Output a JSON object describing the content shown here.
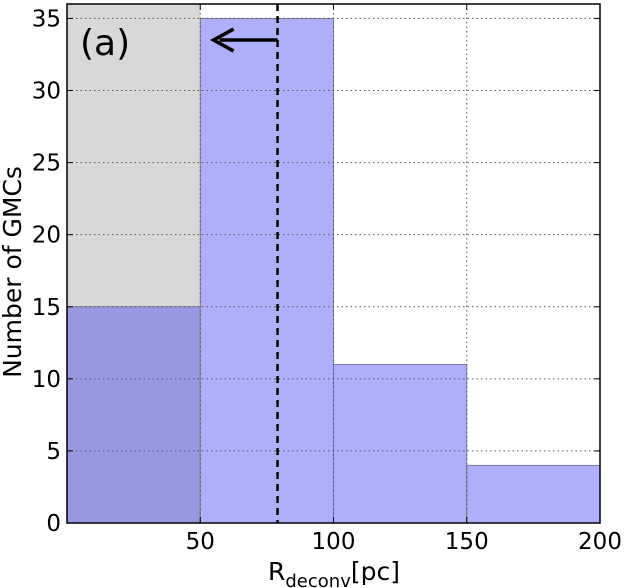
{
  "chart_data": {
    "type": "bar",
    "panel_label": "(a)",
    "xlabel_main": "R",
    "xlabel_sub": "deconv",
    "xlabel_unit": "[pc]",
    "ylabel": "Number of GMCs",
    "xlim": [
      0,
      200
    ],
    "ylim": [
      0,
      36
    ],
    "xticks": [
      50,
      100,
      150,
      200
    ],
    "yticks": [
      0,
      5,
      10,
      15,
      20,
      25,
      30,
      35
    ],
    "grid": true,
    "shaded_region": {
      "x": [
        0,
        50
      ],
      "color": "#d8d8d8"
    },
    "bins": [
      {
        "x0": 0,
        "x1": 50,
        "value": 15
      },
      {
        "x0": 50,
        "x1": 100,
        "value": 35
      },
      {
        "x0": 100,
        "x1": 150,
        "value": 11
      },
      {
        "x0": 150,
        "x1": 200,
        "value": 4
      }
    ],
    "bar_color": "#aeaffa",
    "bar_color_overlap": "#9798e2",
    "vline": {
      "x": 79,
      "style": "dashed",
      "color": "#000000"
    },
    "arrow": {
      "from_x": 79,
      "to_x": 55,
      "y": 33.5,
      "color": "#000000"
    }
  }
}
